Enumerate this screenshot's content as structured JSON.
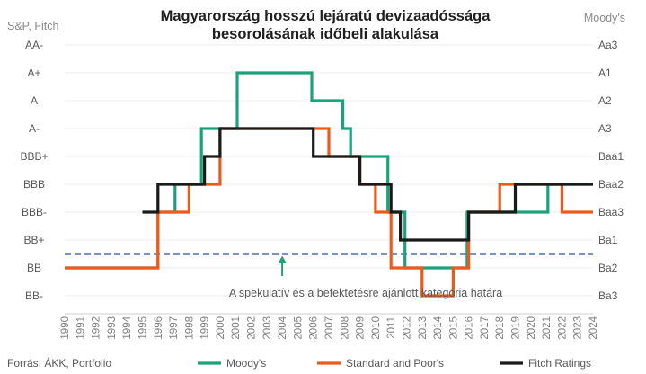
{
  "chart_data": {
    "type": "line",
    "title_line1": "Magyarország hosszú lejáratú devizaadóssága",
    "title_line2": "besorolásának időbeli alakulása",
    "left_axis_caption": "S&P, Fitch",
    "right_axis_caption": "Moody's",
    "y_levels_left": [
      "AA-",
      "A+",
      "A",
      "A-",
      "BBB+",
      "BBB",
      "BBB-",
      "BB+",
      "BB",
      "BB-"
    ],
    "y_levels_right": [
      "Aa3",
      "A1",
      "A2",
      "A3",
      "Baa1",
      "Baa2",
      "Baa3",
      "Ba1",
      "Ba2",
      "Ba3"
    ],
    "x_start": 1990,
    "x_end": 2024,
    "x_ticks": [
      "1990",
      "1991",
      "1992",
      "1993",
      "1994",
      "1995",
      "1996",
      "1997",
      "1998",
      "1999",
      "2000",
      "2001",
      "2002",
      "2003",
      "2004",
      "2005",
      "2006",
      "2007",
      "2008",
      "2009",
      "2010",
      "2011",
      "2012",
      "2013",
      "2014",
      "2015",
      "2016",
      "2017",
      "2018",
      "2019",
      "2020",
      "2021",
      "2022",
      "2023",
      "2024"
    ],
    "threshold_level": 7.5,
    "annotation": "A spekulatív és a befektetésre ajánlott kategória határa",
    "series": [
      {
        "name": "Moody's",
        "color": "#1aa37a",
        "steps": [
          [
            1990,
            8
          ],
          [
            1996,
            8
          ],
          [
            1996,
            6
          ],
          [
            1997.1,
            6
          ],
          [
            1997.1,
            5
          ],
          [
            1998.8,
            5
          ],
          [
            1998.8,
            3
          ],
          [
            2001.1,
            3
          ],
          [
            2001.1,
            1
          ],
          [
            2005.9,
            1
          ],
          [
            2005.9,
            2
          ],
          [
            2007.9,
            2
          ],
          [
            2007.9,
            3
          ],
          [
            2008.4,
            3
          ],
          [
            2008.4,
            4
          ],
          [
            2010.8,
            4
          ],
          [
            2010.8,
            6
          ],
          [
            2011.9,
            6
          ],
          [
            2011.9,
            8
          ],
          [
            2015.9,
            8
          ],
          [
            2015.9,
            6
          ],
          [
            2021.1,
            6
          ],
          [
            2021.1,
            5
          ],
          [
            2024,
            5
          ]
        ]
      },
      {
        "name": "Standard and Poor's",
        "color": "#ee5a1e",
        "steps": [
          [
            1990,
            8
          ],
          [
            1996,
            8
          ],
          [
            1996,
            6
          ],
          [
            1998,
            6
          ],
          [
            1998,
            5
          ],
          [
            2000,
            5
          ],
          [
            2000,
            3
          ],
          [
            2007,
            3
          ],
          [
            2007,
            4
          ],
          [
            2009,
            4
          ],
          [
            2009,
            5
          ],
          [
            2010,
            5
          ],
          [
            2010,
            6
          ],
          [
            2011,
            6
          ],
          [
            2011,
            8
          ],
          [
            2013,
            8
          ],
          [
            2013,
            9
          ],
          [
            2015,
            9
          ],
          [
            2015,
            8
          ],
          [
            2016,
            8
          ],
          [
            2016,
            6
          ],
          [
            2018,
            6
          ],
          [
            2018,
            5
          ],
          [
            2022,
            5
          ],
          [
            2022,
            6
          ],
          [
            2024,
            6
          ]
        ]
      },
      {
        "name": "Fitch Ratings",
        "color": "#1a1a1a",
        "steps": [
          [
            1995,
            6
          ],
          [
            1996,
            6
          ],
          [
            1996,
            5
          ],
          [
            1999,
            5
          ],
          [
            1999,
            4
          ],
          [
            2000,
            4
          ],
          [
            2000,
            3
          ],
          [
            2006,
            3
          ],
          [
            2006,
            4
          ],
          [
            2009,
            4
          ],
          [
            2009,
            5
          ],
          [
            2011,
            5
          ],
          [
            2011,
            6
          ],
          [
            2011.6,
            6
          ],
          [
            2011.6,
            7
          ],
          [
            2016,
            7
          ],
          [
            2016,
            6
          ],
          [
            2019,
            6
          ],
          [
            2019,
            5
          ],
          [
            2024,
            5
          ]
        ]
      }
    ],
    "legend": [
      "Moody's",
      "Standard and Poor's",
      "Fitch Ratings"
    ]
  },
  "source": "Forrás: ÁKK, Portfolio",
  "colors": {
    "moodys": "#1aa37a",
    "sp": "#ee5a1e",
    "fitch": "#1a1a1a",
    "threshold": "#2f5597",
    "arrow": "#1aa37a"
  }
}
